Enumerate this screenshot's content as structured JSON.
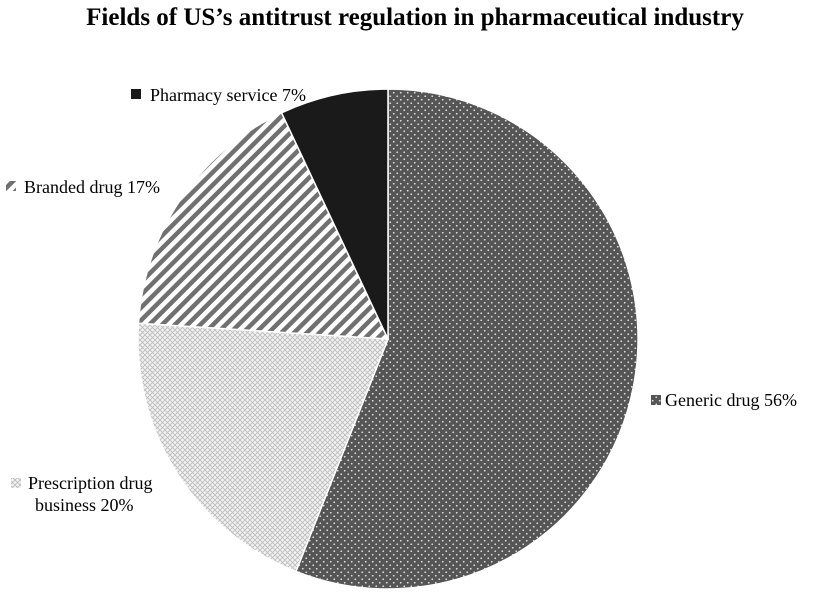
{
  "chart_data": {
    "type": "pie",
    "title": "Fields of US’s antitrust regulation in pharmaceutical industry",
    "slices": [
      {
        "label": "Generic drug",
        "value": 56,
        "display": "Generic drug 56%",
        "pattern": "dots",
        "color": "#555555"
      },
      {
        "label": "Prescription drug business",
        "value": 20,
        "display_lines": [
          "Prescription drug",
          "business 20%"
        ],
        "pattern": "crosshatch",
        "color": "#c8c8c8"
      },
      {
        "label": "Branded drug",
        "value": 17,
        "display": "Branded drug 17%",
        "pattern": "diagonal-stripes",
        "color": "#777777"
      },
      {
        "label": "Pharmacy service",
        "value": 7,
        "display": "Pharmacy service 7%",
        "pattern": "solid",
        "color": "#1a1a1a"
      }
    ],
    "start_angle": "12 o'clock",
    "direction": "clockwise",
    "legend": "none (labels beside slices)"
  }
}
